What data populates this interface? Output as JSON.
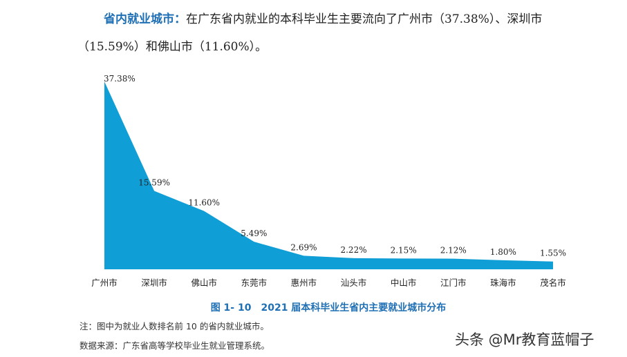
{
  "paragraph": {
    "lead": "省内就业城市：",
    "text": "在广东省内就业的本科毕业生主要流向了广州市（37.38%）、深圳市（15.59%）和佛山市（11.60%）。"
  },
  "chart_data": {
    "type": "area",
    "categories": [
      "广州市",
      "深圳市",
      "佛山市",
      "东莞市",
      "惠州市",
      "汕头市",
      "中山市",
      "江门市",
      "珠海市",
      "茂名市"
    ],
    "values": [
      37.38,
      15.59,
      11.6,
      5.49,
      2.69,
      2.22,
      2.15,
      2.12,
      1.8,
      1.55
    ],
    "value_labels": [
      "37.38%",
      "15.59%",
      "11.60%",
      "5.49%",
      "2.69%",
      "2.22%",
      "2.15%",
      "2.12%",
      "1.80%",
      "1.55%"
    ],
    "color": "#0f9ed5"
  },
  "caption": "图 1- 10　2021 届本科毕业生省内主要就业城市分布",
  "notes": [
    "注：图中为就业人数排名前 10 的省内就业城市。",
    "数据来源：广东省高等学校毕业生就业管理系统。"
  ],
  "watermark": "头条 @Mr教育蓝帽子"
}
